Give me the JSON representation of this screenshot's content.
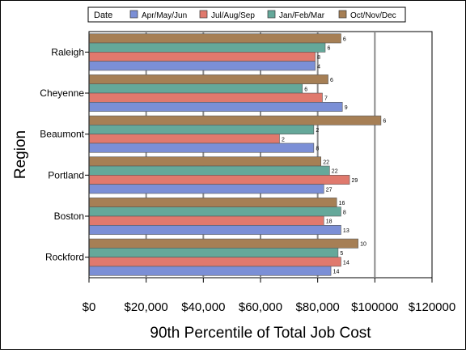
{
  "chart_data": {
    "type": "bar",
    "orientation": "horizontal",
    "xlabel": "90th Percentile of Total Job Cost",
    "ylabel": "Region",
    "xlim": [
      0,
      120000
    ],
    "xticks": [
      0,
      20000,
      40000,
      60000,
      80000,
      100000,
      120000
    ],
    "xtick_labels": [
      "$0",
      "$20,000",
      "$40,000",
      "$60,000",
      "$80,000",
      "$100000",
      "$120000"
    ],
    "grid": "vertical",
    "legend": {
      "title": "Date",
      "placement": "top",
      "entries": [
        "Apr/May/Jun",
        "Jul/Aug/Sep",
        "Jan/Feb/Mar",
        "Oct/Nov/Dec"
      ]
    },
    "categories": [
      "Raleigh",
      "Cheyenne",
      "Beaumont",
      "Portland",
      "Boston",
      "Rockford"
    ],
    "series": [
      {
        "name": "Apr/May/Jun",
        "color": "#7b8fd6",
        "values": [
          79000,
          88500,
          78500,
          82000,
          88000,
          84500
        ],
        "labels": [
          "4",
          "9",
          "8",
          "27",
          "13",
          "14"
        ]
      },
      {
        "name": "Jul/Aug/Sep",
        "color": "#e0796d",
        "values": [
          79000,
          81500,
          66500,
          91000,
          82000,
          88000
        ],
        "labels": [
          "8",
          "7",
          "2",
          "29",
          "18",
          "14"
        ]
      },
      {
        "name": "Jan/Feb/Mar",
        "color": "#65a89a",
        "values": [
          82500,
          74500,
          78500,
          84000,
          88000,
          87000
        ],
        "labels": [
          "6",
          "6",
          "2",
          "22",
          "8",
          "5"
        ]
      },
      {
        "name": "Oct/Nov/Dec",
        "color": "#a67f55",
        "values": [
          88000,
          83500,
          102000,
          81000,
          86500,
          94000
        ],
        "labels": [
          "6",
          "6",
          "6",
          "22",
          "16",
          "10"
        ]
      }
    ],
    "bar_order_top_to_bottom": [
      "Oct/Nov/Dec",
      "Jan/Feb/Mar",
      "Jul/Aug/Sep",
      "Apr/May/Jun"
    ]
  }
}
